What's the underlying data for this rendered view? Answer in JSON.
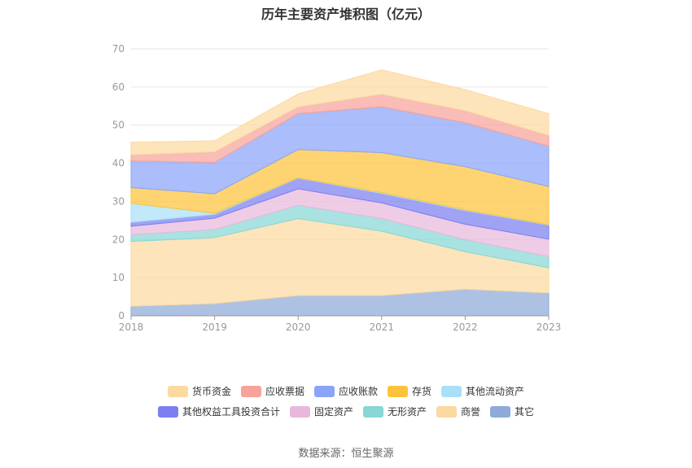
{
  "chart_data": {
    "type": "area",
    "stacked": true,
    "title": "历年主要资产堆积图（亿元）",
    "source": "数据来源：恒生聚源",
    "x": [
      "2018",
      "2019",
      "2020",
      "2021",
      "2022",
      "2023"
    ],
    "ylim": [
      0,
      70
    ],
    "yticks": [
      0,
      10,
      20,
      30,
      40,
      50,
      60,
      70
    ],
    "grid": true,
    "legend_position": "bottom",
    "series": [
      {
        "name": "其它",
        "color": "#8eaad8",
        "values": [
          2.5,
          3.2,
          5.3,
          5.3,
          7.0,
          6.0
        ]
      },
      {
        "name": "商誉",
        "color": "#fcd9a0",
        "values": [
          17.0,
          17.3,
          20.2,
          16.9,
          9.8,
          6.6
        ]
      },
      {
        "name": "无形资产",
        "color": "#86d7d5",
        "values": [
          1.8,
          2.1,
          3.5,
          3.3,
          3.2,
          2.9
        ]
      },
      {
        "name": "固定资产",
        "color": "#e8b8dc",
        "values": [
          2.2,
          3.0,
          4.3,
          4.1,
          4.0,
          4.6
        ]
      },
      {
        "name": "其他权益工具投资合计",
        "color": "#7b7ff0",
        "values": [
          1.0,
          1.0,
          2.8,
          2.5,
          3.6,
          3.7
        ]
      },
      {
        "name": "其他流动资产",
        "color": "#a9e0f8",
        "values": [
          5.0,
          0.3,
          0.1,
          0.2,
          0.2,
          0.1
        ]
      },
      {
        "name": "存货",
        "color": "#fcc43a",
        "values": [
          4.1,
          5.1,
          7.4,
          10.5,
          11.3,
          10.0
        ]
      },
      {
        "name": "应收账款",
        "color": "#8aa4f8",
        "values": [
          7.0,
          8.2,
          9.4,
          12.0,
          11.5,
          10.6
        ]
      },
      {
        "name": "应收票据",
        "color": "#f7a29a",
        "values": [
          1.6,
          2.8,
          1.8,
          3.3,
          3.2,
          2.8
        ]
      },
      {
        "name": "货币资金",
        "color": "#fcd9a0",
        "values": [
          3.3,
          2.9,
          3.4,
          6.4,
          5.5,
          5.7
        ]
      }
    ],
    "legend_order": [
      "货币资金",
      "应收票据",
      "应收账款",
      "存货",
      "其他流动资产",
      "其他权益工具投资合计",
      "固定资产",
      "无形资产",
      "商誉",
      "其它"
    ]
  }
}
